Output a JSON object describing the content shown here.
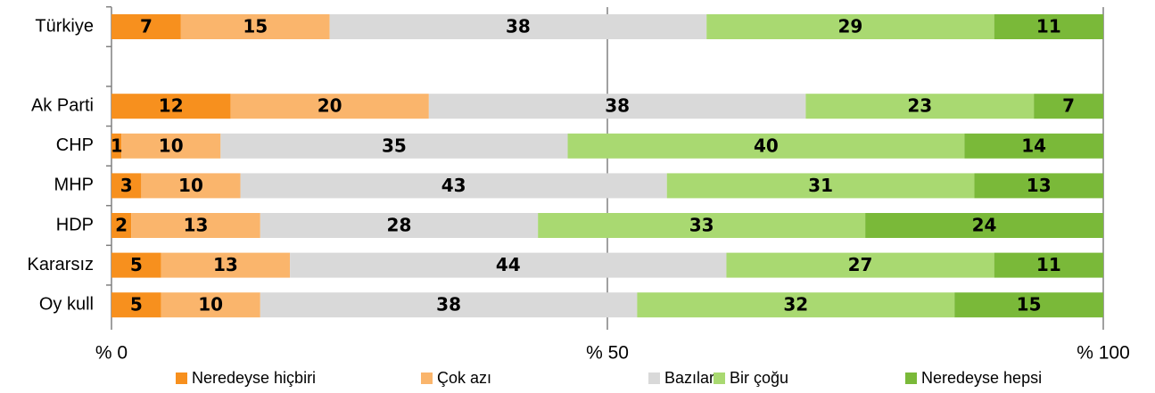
{
  "chart_data": {
    "type": "stacked_barh",
    "categories": [
      "Türkiye",
      null,
      "Ak Parti",
      "CHP",
      "MHP",
      "HDP",
      "Kararsız",
      "Oy kull"
    ],
    "series": [
      {
        "name": "Neredeyse hiçbiri",
        "color": "#f7901e",
        "values": [
          7,
          null,
          12,
          1,
          3,
          2,
          5,
          5
        ]
      },
      {
        "name": "Çok azı",
        "color": "#fab56c",
        "values": [
          15,
          null,
          20,
          10,
          10,
          13,
          13,
          10
        ]
      },
      {
        "name": "Bazıları",
        "color": "#d9d9d9",
        "values": [
          38,
          null,
          38,
          35,
          43,
          28,
          44,
          38
        ]
      },
      {
        "name": "Bir çoğu",
        "color": "#a9d971",
        "values": [
          29,
          null,
          23,
          40,
          31,
          33,
          27,
          32
        ]
      },
      {
        "name": "Neredeyse hepsi",
        "color": "#7ab939",
        "values": [
          11,
          null,
          7,
          14,
          13,
          24,
          11,
          15
        ]
      }
    ],
    "xlim": [
      0,
      100
    ],
    "xticks": [
      {
        "value": 0,
        "label": "% 0"
      },
      {
        "value": 50,
        "label": "% 50"
      },
      {
        "value": 100,
        "label": "% 100"
      }
    ],
    "grid": true,
    "legend": "bottom"
  }
}
